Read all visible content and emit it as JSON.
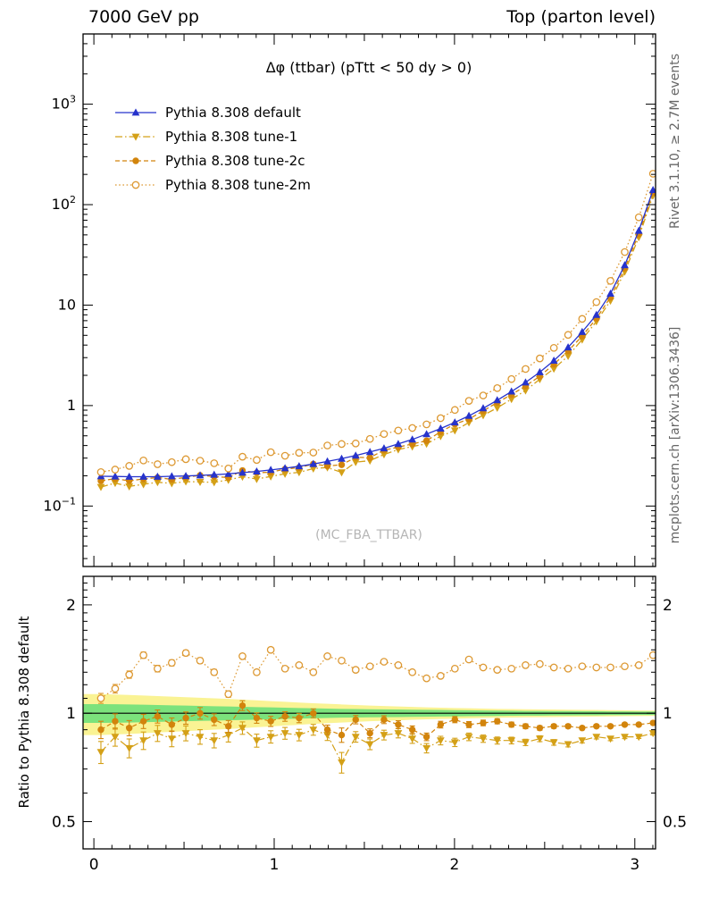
{
  "header": {
    "left": "7000 GeV pp",
    "right": "Top (parton level)"
  },
  "side_texts": {
    "top_right": "Rivet 3.1.10, ≥ 2.7M events",
    "bottom_right": "mcplots.cern.ch [arXiv:1306.3436]"
  },
  "watermark": "(MC_FBA_TTBAR)",
  "ratio_ylabel": "Ratio to Pythia 8.308 default",
  "chart_data": {
    "type": "line",
    "title": "Δφ (ttbar) (pTtt < 50 dy > 0)",
    "xlabel": "",
    "ylabel": "",
    "legend_position": "top-left",
    "grid": false,
    "x_range": [
      -0.06,
      3.115
    ],
    "main_y_range": [
      0.025,
      5000
    ],
    "main_y_scale": "log",
    "ratio_y_range": [
      0.42,
      2.4
    ],
    "ratio_y_scale": "log",
    "x_ticks": [
      0,
      1,
      2,
      3
    ],
    "main_y_ticks": [
      1000,
      100,
      10,
      1,
      0.1
    ],
    "ratio_y_ticks": [
      2,
      1,
      0.5
    ],
    "x": [
      0.039,
      0.118,
      0.196,
      0.275,
      0.353,
      0.432,
      0.51,
      0.589,
      0.667,
      0.746,
      0.824,
      0.903,
      0.981,
      1.06,
      1.138,
      1.217,
      1.295,
      1.374,
      1.452,
      1.531,
      1.609,
      1.688,
      1.766,
      1.845,
      1.923,
      2.002,
      2.08,
      2.159,
      2.237,
      2.316,
      2.394,
      2.473,
      2.551,
      2.63,
      2.708,
      2.787,
      2.865,
      2.944,
      3.022,
      3.101
    ],
    "series": [
      {
        "name": "Pythia 8.308 default",
        "color": "#2633cc",
        "marker": "triangle-up",
        "line": "solid",
        "values": [
          0.198,
          0.197,
          0.196,
          0.196,
          0.196,
          0.198,
          0.199,
          0.202,
          0.205,
          0.209,
          0.215,
          0.221,
          0.229,
          0.238,
          0.249,
          0.262,
          0.278,
          0.296,
          0.318,
          0.345,
          0.375,
          0.415,
          0.46,
          0.52,
          0.59,
          0.68,
          0.79,
          0.94,
          1.13,
          1.38,
          1.7,
          2.15,
          2.8,
          3.8,
          5.4,
          8.0,
          13.0,
          25.0,
          55.0,
          140.0
        ]
      },
      {
        "name": "Pythia 8.308 tune-1",
        "color": "#d4a017",
        "marker": "triangle-down",
        "line": "dashdot",
        "ratio": [
          0.78,
          0.86,
          0.8,
          0.84,
          0.88,
          0.85,
          0.88,
          0.86,
          0.84,
          0.87,
          0.91,
          0.84,
          0.86,
          0.88,
          0.87,
          0.9,
          0.87,
          0.73,
          0.86,
          0.82,
          0.87,
          0.88,
          0.85,
          0.8,
          0.84,
          0.83,
          0.86,
          0.85,
          0.84,
          0.84,
          0.83,
          0.85,
          0.83,
          0.82,
          0.84,
          0.86,
          0.85,
          0.86,
          0.86,
          0.88
        ],
        "ratio_err": [
          0.055,
          0.05,
          0.048,
          0.047,
          0.045,
          0.043,
          0.042,
          0.04,
          0.039,
          0.038,
          0.036,
          0.035,
          0.034,
          0.033,
          0.032,
          0.031,
          0.03,
          0.048,
          0.029,
          0.028,
          0.027,
          0.026,
          0.025,
          0.024,
          0.023,
          0.022,
          0.021,
          0.02,
          0.019,
          0.018,
          0.017,
          0.016,
          0.015,
          0.014,
          0.013,
          0.012,
          0.011,
          0.01,
          0.009,
          0.01
        ]
      },
      {
        "name": "Pythia 8.308 tune-2c",
        "color": "#d2840c",
        "marker": "circle",
        "line": "dashed",
        "ratio": [
          0.9,
          0.95,
          0.91,
          0.95,
          0.98,
          0.93,
          0.97,
          1.0,
          0.96,
          0.92,
          1.05,
          0.97,
          0.95,
          0.98,
          0.97,
          1.0,
          0.9,
          0.87,
          0.96,
          0.88,
          0.96,
          0.93,
          0.9,
          0.86,
          0.93,
          0.96,
          0.93,
          0.94,
          0.95,
          0.93,
          0.92,
          0.91,
          0.92,
          0.92,
          0.91,
          0.92,
          0.92,
          0.93,
          0.93,
          0.94
        ],
        "ratio_err": [
          0.05,
          0.046,
          0.044,
          0.043,
          0.041,
          0.04,
          0.038,
          0.037,
          0.036,
          0.035,
          0.033,
          0.032,
          0.031,
          0.03,
          0.029,
          0.028,
          0.027,
          0.04,
          0.026,
          0.025,
          0.024,
          0.023,
          0.022,
          0.021,
          0.02,
          0.019,
          0.018,
          0.017,
          0.016,
          0.015,
          0.014,
          0.013,
          0.012,
          0.011,
          0.01,
          0.009,
          0.008,
          0.008,
          0.007,
          0.008
        ]
      },
      {
        "name": "Pythia 8.308 tune-2m",
        "color": "#dd9933",
        "marker": "circle-open",
        "line": "dotted",
        "ratio": [
          1.1,
          1.17,
          1.28,
          1.45,
          1.33,
          1.38,
          1.47,
          1.4,
          1.3,
          1.13,
          1.44,
          1.3,
          1.5,
          1.33,
          1.36,
          1.3,
          1.44,
          1.4,
          1.32,
          1.35,
          1.39,
          1.36,
          1.3,
          1.25,
          1.27,
          1.33,
          1.41,
          1.34,
          1.32,
          1.33,
          1.36,
          1.37,
          1.34,
          1.33,
          1.35,
          1.34,
          1.34,
          1.35,
          1.36,
          1.45
        ],
        "ratio_err": [
          0.035,
          0.032,
          0.03,
          0.029,
          0.028,
          0.027,
          0.026,
          0.025,
          0.024,
          0.023,
          0.022,
          0.021,
          0.02,
          0.019,
          0.018,
          0.017,
          0.016,
          0.016,
          0.015,
          0.015,
          0.014,
          0.014,
          0.013,
          0.013,
          0.012,
          0.012,
          0.011,
          0.011,
          0.01,
          0.01,
          0.009,
          0.009,
          0.008,
          0.008,
          0.008,
          0.007,
          0.007,
          0.007,
          0.006,
          0.007
        ]
      }
    ],
    "bands": {
      "yellow": {
        "color": "#faf394",
        "halfwidth": [
          0.13,
          0.127,
          0.124,
          0.12,
          0.116,
          0.112,
          0.108,
          0.104,
          0.1,
          0.096,
          0.091,
          0.086,
          0.081,
          0.076,
          0.071,
          0.066,
          0.062,
          0.058,
          0.054,
          0.05,
          0.047,
          0.044,
          0.041,
          0.038,
          0.036,
          0.034,
          0.032,
          0.03,
          0.028,
          0.027,
          0.026,
          0.025,
          0.024,
          0.023,
          0.022,
          0.021,
          0.02,
          0.019,
          0.018,
          0.017
        ]
      },
      "green": {
        "color": "#7ce27c",
        "halfwidth": [
          0.06,
          0.059,
          0.058,
          0.056,
          0.054,
          0.052,
          0.05,
          0.048,
          0.046,
          0.044,
          0.042,
          0.04,
          0.038,
          0.036,
          0.034,
          0.032,
          0.03,
          0.028,
          0.027,
          0.026,
          0.025,
          0.024,
          0.023,
          0.022,
          0.021,
          0.02,
          0.019,
          0.018,
          0.017,
          0.016,
          0.015,
          0.015,
          0.014,
          0.014,
          0.013,
          0.013,
          0.012,
          0.012,
          0.011,
          0.011
        ]
      }
    }
  }
}
